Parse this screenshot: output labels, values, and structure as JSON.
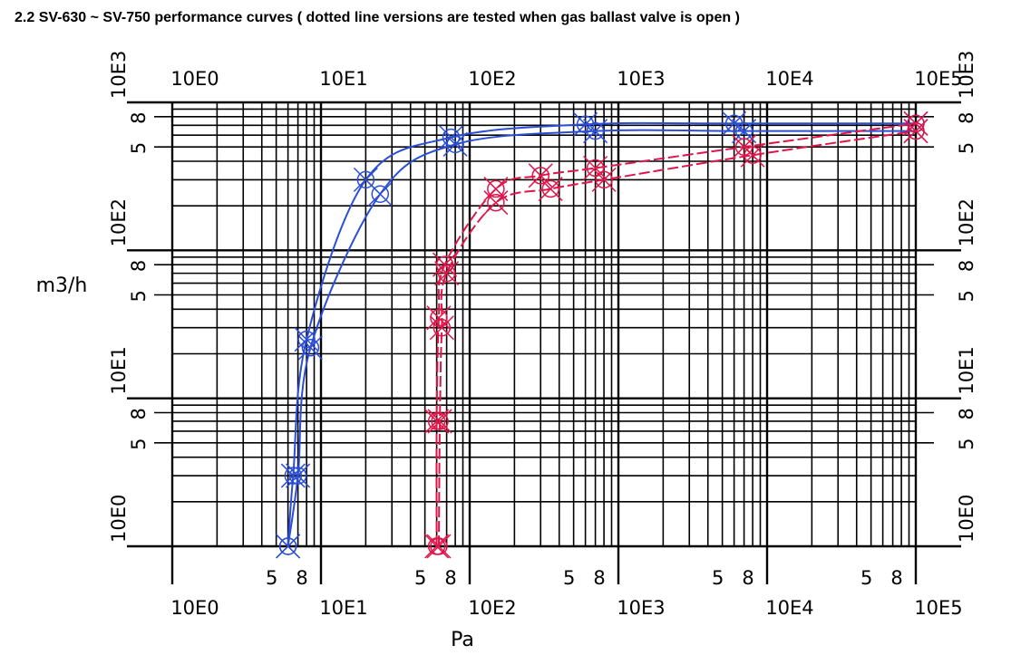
{
  "heading": "2.2  SV-630 ~ SV-750 performance curves ( dotted line versions are tested when gas ballast valve is open )",
  "chart_data": {
    "type": "line",
    "title": "2.2  SV-630 ~ SV-750 performance curves ( dotted line versions are tested when gas ballast valve is open )",
    "xlabel": "Pa",
    "ylabel": "m3/h",
    "x_scale": "log",
    "y_scale": "log",
    "xlim": [
      1,
      100000
    ],
    "ylim": [
      1,
      1000
    ],
    "grid": true,
    "x_decade_labels": [
      "10E0",
      "10E1",
      "10E2",
      "10E3",
      "10E4",
      "10E5"
    ],
    "y_decade_labels": [
      "10E0",
      "10E1",
      "10E2",
      "10E3"
    ],
    "minor_tick_labels": [
      "5",
      "8"
    ],
    "colors": {
      "blue": "#2a4fd6",
      "red": "#e0154a",
      "grid": "#000000"
    },
    "series": [
      {
        "color": "blue",
        "dashed": false,
        "marker": "x-circle",
        "x": [
          6,
          6.5,
          8,
          20,
          75,
          600,
          6000,
          100000
        ],
        "y": [
          1,
          3,
          25,
          300,
          580,
          710,
          720,
          720
        ]
      },
      {
        "color": "blue",
        "dashed": false,
        "marker": "x-circle",
        "x": [
          6,
          7,
          8.5,
          25,
          80,
          700,
          7000,
          100000
        ],
        "y": [
          1,
          3,
          22,
          240,
          520,
          640,
          640,
          640
        ]
      },
      {
        "color": "red",
        "dashed": true,
        "marker": "x-circle",
        "x": [
          60,
          60,
          62,
          68,
          150,
          300,
          700,
          7000,
          100000
        ],
        "y": [
          1,
          7,
          35,
          80,
          260,
          320,
          360,
          500,
          720
        ]
      },
      {
        "color": "red",
        "dashed": true,
        "marker": "x-circle",
        "x": [
          62,
          63,
          65,
          70,
          150,
          350,
          800,
          8000,
          100000
        ],
        "y": [
          1,
          7,
          30,
          70,
          210,
          260,
          300,
          440,
          640
        ]
      }
    ]
  }
}
